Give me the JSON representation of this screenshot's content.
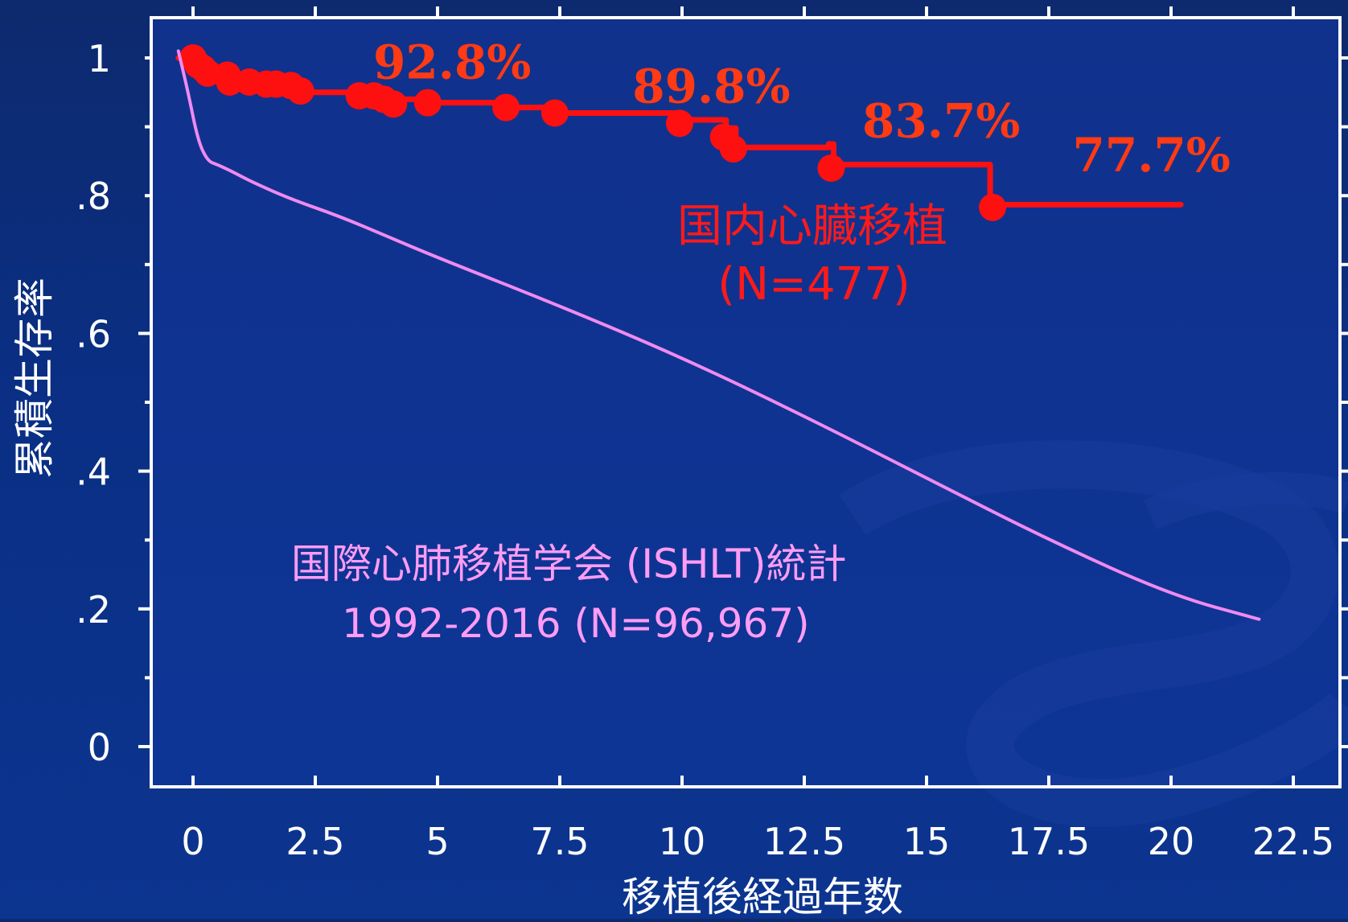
{
  "colors": {
    "background": "#0b2f86",
    "plot_bg": "#0e318f",
    "axis": "#ffffff",
    "domestic": "#ff1010",
    "ishlt": "#f08af0",
    "pct_label": "#ff3a14"
  },
  "chart_data": {
    "type": "line",
    "xlabel": "移植後経過年数",
    "ylabel": "累積生存率",
    "xlim": [
      -0.3,
      22.6
    ],
    "ylim": [
      -0.06,
      1.06
    ],
    "x_ticks": [
      0,
      2.5,
      5,
      7.5,
      10,
      12.5,
      15,
      17.5,
      20,
      22.5
    ],
    "x_tick_labels": [
      "0",
      "2.5",
      "5",
      "7.5",
      "10",
      "12.5",
      "15",
      "17.5",
      "20",
      "22.5"
    ],
    "y_ticks": [
      0,
      0.2,
      0.4,
      0.6,
      0.8,
      1.0
    ],
    "y_tick_labels": [
      "0",
      ".2",
      ".4",
      ".6",
      ".8",
      "1"
    ],
    "grid": false,
    "series": [
      {
        "name": "国内心臓移植 (N=477)",
        "label_lines": [
          "国内心臓移植",
          "(N=477)"
        ],
        "style": "step",
        "color": "#ff1010",
        "x": [
          -0.3,
          0.0,
          0.2,
          0.5,
          0.8,
          1.2,
          1.6,
          2.0,
          2.3,
          3.3,
          4.1,
          4.9,
          6.4,
          7.4,
          10.0,
          10.9,
          11.1,
          13.0,
          13.1,
          16.3,
          16.3,
          20.2
        ],
        "y": [
          1.0,
          0.998,
          0.985,
          0.975,
          0.965,
          0.962,
          0.96,
          0.955,
          0.95,
          0.945,
          0.94,
          0.935,
          0.928,
          0.92,
          0.91,
          0.898,
          0.87,
          0.875,
          0.845,
          0.845,
          0.787,
          0.787
        ],
        "events": [
          {
            "x": 0.0,
            "y": 1.0
          },
          {
            "x": 0.1,
            "y": 0.99
          },
          {
            "x": 0.2,
            "y": 0.985
          },
          {
            "x": 0.3,
            "y": 0.978
          },
          {
            "x": 0.7,
            "y": 0.975
          },
          {
            "x": 0.75,
            "y": 0.965
          },
          {
            "x": 1.15,
            "y": 0.965
          },
          {
            "x": 1.5,
            "y": 0.962
          },
          {
            "x": 1.7,
            "y": 0.962
          },
          {
            "x": 2.0,
            "y": 0.96
          },
          {
            "x": 2.2,
            "y": 0.952
          },
          {
            "x": 3.4,
            "y": 0.945
          },
          {
            "x": 3.7,
            "y": 0.945
          },
          {
            "x": 3.9,
            "y": 0.94
          },
          {
            "x": 4.1,
            "y": 0.933
          },
          {
            "x": 4.8,
            "y": 0.935
          },
          {
            "x": 6.4,
            "y": 0.928
          },
          {
            "x": 7.4,
            "y": 0.92
          },
          {
            "x": 9.95,
            "y": 0.905
          },
          {
            "x": 10.85,
            "y": 0.885
          },
          {
            "x": 11.05,
            "y": 0.868
          },
          {
            "x": 13.05,
            "y": 0.84
          },
          {
            "x": 16.35,
            "y": 0.783
          }
        ]
      },
      {
        "name": "国際心肺移植学会 (ISHLT)統計 1992-2016 (N=96,967)",
        "label_lines": [
          "国際心肺移植学会 (ISHLT)統計",
          "1992-2016 (N=96,967)"
        ],
        "style": "line",
        "color": "#f08af0",
        "x": [
          -0.3,
          -0.1,
          0.1,
          0.3,
          0.5,
          0.8,
          1.2,
          2.0,
          3.0,
          4.0,
          5.0,
          7.5,
          10.0,
          12.5,
          15.0,
          17.5,
          20.0,
          21.8
        ],
        "y": [
          1.01,
          0.95,
          0.88,
          0.85,
          0.845,
          0.835,
          0.82,
          0.795,
          0.77,
          0.74,
          0.71,
          0.64,
          0.565,
          0.48,
          0.39,
          0.3,
          0.22,
          0.185
        ]
      }
    ],
    "annotations": [
      {
        "text": "92.8%",
        "x": 5.3,
        "y": 0.97
      },
      {
        "text": "89.8%",
        "x": 10.6,
        "y": 0.935
      },
      {
        "text": "83.7%",
        "x": 15.3,
        "y": 0.885
      },
      {
        "text": "77.7%",
        "x": 19.6,
        "y": 0.835
      }
    ]
  }
}
